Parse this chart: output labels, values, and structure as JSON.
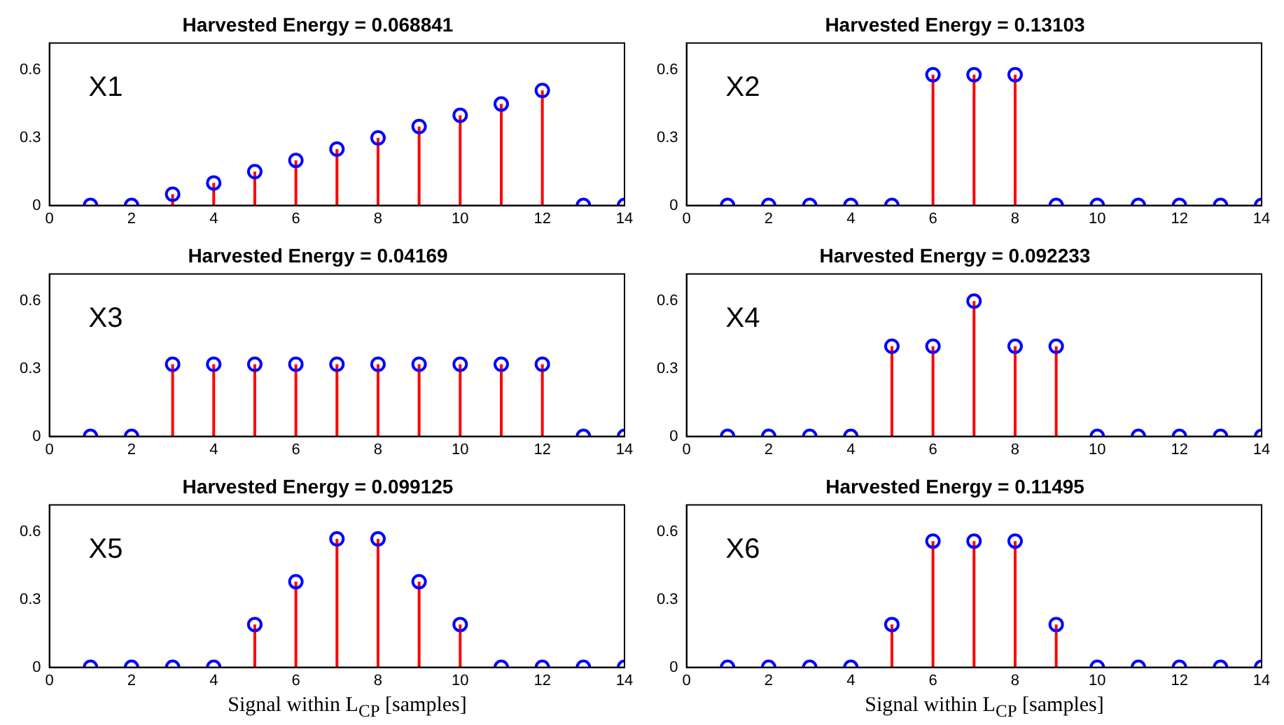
{
  "chart_data": [
    {
      "type": "lollipop",
      "title": "Harvested Energy = 0.068841",
      "annotations": [
        "X1"
      ],
      "x": [
        1,
        2,
        3,
        4,
        5,
        6,
        7,
        8,
        9,
        10,
        11,
        12,
        13,
        14
      ],
      "series": [
        {
          "color": "#0000ff",
          "values": [
            0,
            0,
            0.05,
            0.1,
            0.15,
            0.2,
            0.25,
            0.3,
            0.35,
            0.4,
            0.45,
            0.51,
            0,
            0
          ]
        }
      ],
      "xlim": [
        0,
        14
      ],
      "xticks": [
        0,
        2,
        4,
        6,
        8,
        10,
        12,
        14
      ],
      "ylim": [
        0,
        0.72
      ],
      "yticks": [
        0,
        0.3,
        0.6
      ],
      "marker": "circle",
      "legend": false
    },
    {
      "type": "lollipop",
      "title": "Harvested Energy = 0.13103",
      "annotations": [
        "X2"
      ],
      "x": [
        1,
        2,
        3,
        4,
        5,
        6,
        7,
        8,
        9,
        10,
        11,
        12,
        13,
        14
      ],
      "series": [
        {
          "color": "#0000ff",
          "values": [
            0,
            0,
            0,
            0,
            0,
            0.58,
            0.58,
            0.58,
            0,
            0,
            0,
            0,
            0,
            0
          ]
        }
      ],
      "xlim": [
        0,
        14
      ],
      "xticks": [
        0,
        2,
        4,
        6,
        8,
        10,
        12,
        14
      ],
      "ylim": [
        0,
        0.72
      ],
      "yticks": [
        0,
        0.3,
        0.6
      ],
      "marker": "circle",
      "legend": false
    },
    {
      "type": "lollipop",
      "title": "Harvested Energy = 0.04169",
      "annotations": [
        "X3"
      ],
      "x": [
        1,
        2,
        3,
        4,
        5,
        6,
        7,
        8,
        9,
        10,
        11,
        12,
        13,
        14
      ],
      "series": [
        {
          "color": "#0000ff",
          "values": [
            0,
            0,
            0.32,
            0.32,
            0.32,
            0.32,
            0.32,
            0.32,
            0.32,
            0.32,
            0.32,
            0.32,
            0,
            0
          ]
        }
      ],
      "xlim": [
        0,
        14
      ],
      "xticks": [
        0,
        2,
        4,
        6,
        8,
        10,
        12,
        14
      ],
      "ylim": [
        0,
        0.72
      ],
      "yticks": [
        0,
        0.3,
        0.6
      ],
      "marker": "circle",
      "legend": false
    },
    {
      "type": "lollipop",
      "title": "Harvested Energy = 0.092233",
      "annotations": [
        "X4"
      ],
      "x": [
        1,
        2,
        3,
        4,
        5,
        6,
        7,
        8,
        9,
        10,
        11,
        12,
        13,
        14
      ],
      "series": [
        {
          "color": "#0000ff",
          "values": [
            0,
            0,
            0,
            0,
            0.4,
            0.4,
            0.6,
            0.4,
            0.4,
            0,
            0,
            0,
            0,
            0
          ]
        }
      ],
      "xlim": [
        0,
        14
      ],
      "xticks": [
        0,
        2,
        4,
        6,
        8,
        10,
        12,
        14
      ],
      "ylim": [
        0,
        0.72
      ],
      "yticks": [
        0,
        0.3,
        0.6
      ],
      "marker": "circle",
      "legend": false
    },
    {
      "type": "lollipop",
      "title": "Harvested Energy = 0.099125",
      "annotations": [
        "X5"
      ],
      "xlabel": "Signal within L$_{CP}$ [samples]",
      "x": [
        1,
        2,
        3,
        4,
        5,
        6,
        7,
        8,
        9,
        10,
        11,
        12,
        13,
        14
      ],
      "series": [
        {
          "color": "#0000ff",
          "values": [
            0,
            0,
            0,
            0,
            0.19,
            0.38,
            0.57,
            0.57,
            0.38,
            0.19,
            0,
            0,
            0,
            0
          ]
        }
      ],
      "xlim": [
        0,
        14
      ],
      "xticks": [
        0,
        2,
        4,
        6,
        8,
        10,
        12,
        14
      ],
      "ylim": [
        0,
        0.72
      ],
      "yticks": [
        0,
        0.3,
        0.6
      ],
      "marker": "circle",
      "legend": false
    },
    {
      "type": "lollipop",
      "title": "Harvested Energy = 0.11495",
      "annotations": [
        "X6"
      ],
      "xlabel": "Signal within L$_{CP}$ [samples]",
      "x": [
        1,
        2,
        3,
        4,
        5,
        6,
        7,
        8,
        9,
        10,
        11,
        12,
        13,
        14
      ],
      "series": [
        {
          "color": "#0000ff",
          "values": [
            0,
            0,
            0,
            0,
            0.19,
            0.56,
            0.56,
            0.56,
            0.19,
            0,
            0,
            0,
            0,
            0
          ]
        }
      ],
      "xlim": [
        0,
        14
      ],
      "xticks": [
        0,
        2,
        4,
        6,
        8,
        10,
        12,
        14
      ],
      "ylim": [
        0,
        0.72
      ],
      "yticks": [
        0,
        0.3,
        0.6
      ],
      "marker": "circle",
      "legend": false
    }
  ]
}
